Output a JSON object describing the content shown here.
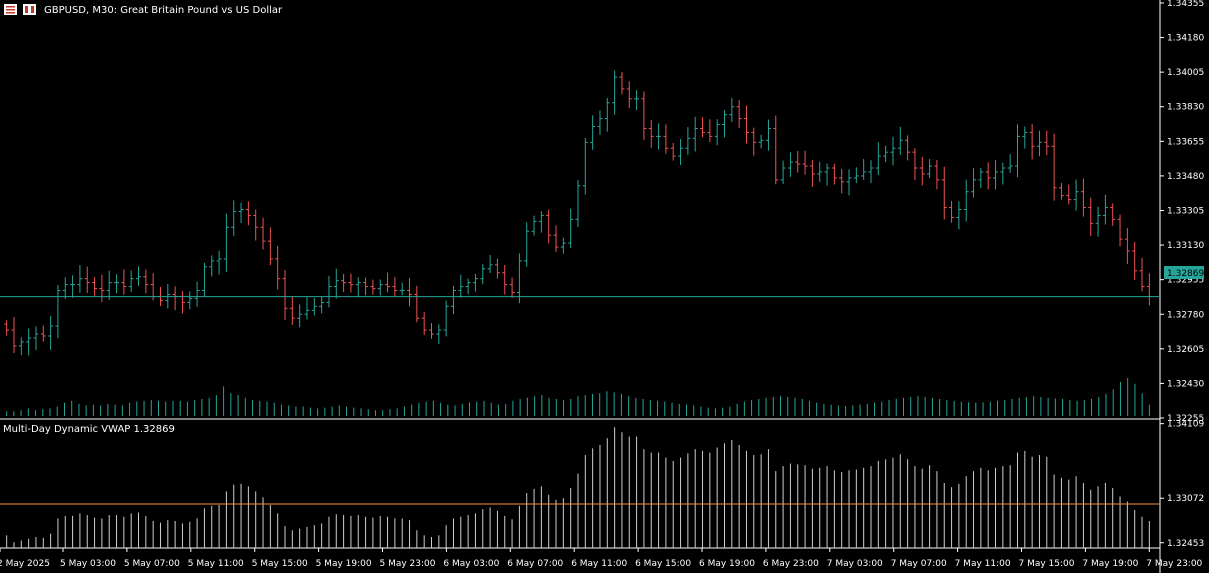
{
  "header": {
    "symbol_info": "GBPUSD, M30:  Great Britain Pound vs US Dollar",
    "indicator_label": "Multi-Day Dynamic VWAP 1.32869",
    "current_price_label": "1.32869"
  },
  "colors": {
    "background": "#000000",
    "bull": "#26a69a",
    "bear": "#ef5350",
    "volume": "#26a69a",
    "vwap_bars": "#cfcfcf",
    "vwap_line": "#ff8c3a",
    "price_line": "#26a69a",
    "grid_line": "#ffffff"
  },
  "icons": [
    "menu-icon",
    "chart-window-icon"
  ],
  "chart_data": [
    {
      "type": "candlestick",
      "title": "GBPUSD, M30",
      "ylim": [
        1.3225,
        1.3437
      ],
      "y_ticks": [
        "1.34355",
        "1.34180",
        "1.34005",
        "1.33830",
        "1.33655",
        "1.33480",
        "1.33305",
        "1.33130",
        "1.32955",
        "1.32780",
        "1.32605",
        "1.32430",
        "1.32255"
      ],
      "y_tick_values": [
        1.34355,
        1.3418,
        1.34005,
        1.3383,
        1.33655,
        1.3348,
        1.33305,
        1.3313,
        1.32955,
        1.3278,
        1.32605,
        1.3243,
        1.32255
      ],
      "current_price": 1.32869,
      "x_labels": [
        "2 May 2025",
        "5 May 03:00",
        "5 May 07:00",
        "5 May 11:00",
        "5 May 15:00",
        "5 May 19:00",
        "5 May 23:00",
        "6 May 03:00",
        "6 May 07:00",
        "6 May 11:00",
        "6 May 15:00",
        "6 May 19:00",
        "6 May 23:00",
        "7 May 03:00",
        "7 May 07:00",
        "7 May 11:00",
        "7 May 15:00",
        "7 May 19:00",
        "7 May 23:00"
      ],
      "close_path": [
        1.327,
        1.3262,
        1.3264,
        1.3266,
        1.3268,
        1.3267,
        1.3272,
        1.329,
        1.3293,
        1.3293,
        1.3296,
        1.3294,
        1.3291,
        1.329,
        1.3294,
        1.3294,
        1.3292,
        1.3296,
        1.3297,
        1.3293,
        1.3287,
        1.3285,
        1.3288,
        1.3287,
        1.3284,
        1.3286,
        1.329,
        1.3302,
        1.3305,
        1.3306,
        1.3322,
        1.333,
        1.3331,
        1.3328,
        1.3322,
        1.3315,
        1.3306,
        1.3296,
        1.3281,
        1.3276,
        1.3278,
        1.328,
        1.3282,
        1.3284,
        1.3292,
        1.3295,
        1.3294,
        1.3293,
        1.3294,
        1.3292,
        1.3291,
        1.3293,
        1.3292,
        1.329,
        1.329,
        1.3288,
        1.3276,
        1.327,
        1.3268,
        1.327,
        1.3282,
        1.329,
        1.3292,
        1.3294,
        1.3296,
        1.3301,
        1.3303,
        1.3299,
        1.3293,
        1.3289,
        1.3305,
        1.332,
        1.3325,
        1.3328,
        1.3318,
        1.3312,
        1.3314,
        1.3326,
        1.3343,
        1.3365,
        1.3373,
        1.3377,
        1.3385,
        1.3398,
        1.3392,
        1.3387,
        1.3387,
        1.3372,
        1.3368,
        1.3368,
        1.3362,
        1.3358,
        1.3362,
        1.3367,
        1.3372,
        1.337,
        1.3368,
        1.3374,
        1.3379,
        1.3383,
        1.3377,
        1.337,
        1.3365,
        1.3366,
        1.3372,
        1.3346,
        1.3352,
        1.3355,
        1.3354,
        1.3353,
        1.3349,
        1.335,
        1.3352,
        1.3347,
        1.3345,
        1.3347,
        1.3348,
        1.335,
        1.3352,
        1.3358,
        1.336,
        1.3362,
        1.3366,
        1.336,
        1.3352,
        1.3349,
        1.3353,
        1.3346,
        1.3332,
        1.3327,
        1.3331,
        1.334,
        1.3346,
        1.335,
        1.3347,
        1.335,
        1.3352,
        1.3353,
        1.3368,
        1.337,
        1.3363,
        1.3365,
        1.3363,
        1.3342,
        1.3338,
        1.3336,
        1.334,
        1.3332,
        1.3324,
        1.3328,
        1.3332,
        1.3326,
        1.3316,
        1.331,
        1.33,
        1.3292,
        1.3287
      ]
    },
    {
      "type": "bar",
      "title": "Volume",
      "values_relative": [
        0.12,
        0.12,
        0.15,
        0.2,
        0.15,
        0.18,
        0.2,
        0.25,
        0.35,
        0.4,
        0.32,
        0.28,
        0.3,
        0.28,
        0.32,
        0.3,
        0.28,
        0.35,
        0.38,
        0.4,
        0.42,
        0.4,
        0.38,
        0.4,
        0.4,
        0.38,
        0.42,
        0.45,
        0.48,
        0.55,
        0.78,
        0.6,
        0.55,
        0.48,
        0.42,
        0.4,
        0.38,
        0.35,
        0.3,
        0.28,
        0.25,
        0.25,
        0.22,
        0.2,
        0.22,
        0.25,
        0.28,
        0.25,
        0.22,
        0.2,
        0.18,
        0.15,
        0.15,
        0.18,
        0.2,
        0.25,
        0.3,
        0.35,
        0.38,
        0.4,
        0.35,
        0.3,
        0.28,
        0.32,
        0.35,
        0.38,
        0.4,
        0.35,
        0.3,
        0.32,
        0.4,
        0.45,
        0.48,
        0.52,
        0.55,
        0.48,
        0.45,
        0.42,
        0.45,
        0.52,
        0.55,
        0.58,
        0.6,
        0.65,
        0.62,
        0.58,
        0.52,
        0.48,
        0.45,
        0.42,
        0.4,
        0.38,
        0.35,
        0.32,
        0.3,
        0.28,
        0.25,
        0.22,
        0.2,
        0.22,
        0.25,
        0.32,
        0.38,
        0.42,
        0.45,
        0.48,
        0.5,
        0.52,
        0.5,
        0.48,
        0.45,
        0.4,
        0.35,
        0.32,
        0.3,
        0.28,
        0.26,
        0.28,
        0.3,
        0.32,
        0.35,
        0.38,
        0.42,
        0.45,
        0.48,
        0.5,
        0.52,
        0.5,
        0.48,
        0.45,
        0.42,
        0.4,
        0.38,
        0.36,
        0.35,
        0.36,
        0.38,
        0.4,
        0.42,
        0.45,
        0.48,
        0.5,
        0.52,
        0.5,
        0.48,
        0.46,
        0.45,
        0.42,
        0.4,
        0.42,
        0.45,
        0.5,
        0.58,
        0.7,
        0.9,
        1.0,
        0.85,
        0.6,
        0.3
      ]
    },
    {
      "type": "bar",
      "title": "Multi-Day Dynamic VWAP",
      "y_ticks": [
        "1.34109",
        "1.33072",
        "1.32453"
      ],
      "y_tick_values": [
        1.34109,
        1.33072,
        1.32453
      ],
      "ylim": [
        1.3238,
        1.3416
      ],
      "vwap_level": 1.33072
    }
  ]
}
